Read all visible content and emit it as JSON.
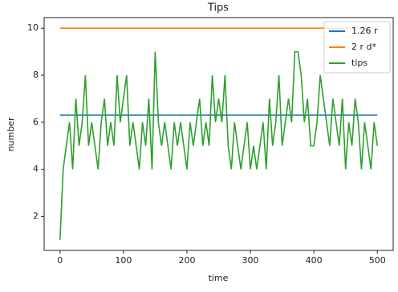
{
  "chart_data": {
    "type": "line",
    "title": "Tips",
    "x_label": "time",
    "y_label": "number",
    "xlim": [
      -25,
      525
    ],
    "ylim": [
      0.55,
      10.45
    ],
    "xticks": [
      0,
      100,
      200,
      300,
      400,
      500
    ],
    "yticks": [
      2,
      4,
      6,
      8,
      10
    ],
    "legend": "upper right",
    "series": [
      {
        "name": "1.26 r",
        "color": "#1f77b4",
        "x": [
          0,
          500
        ],
        "values": [
          6.3,
          6.3
        ]
      },
      {
        "name": "2 r d*",
        "color": "#ff7f0e",
        "x": [
          0,
          500
        ],
        "values": [
          10,
          10
        ]
      },
      {
        "name": "tips",
        "color": "#2ca02c",
        "x": [
          0,
          5,
          10,
          15,
          20,
          25,
          30,
          35,
          40,
          45,
          50,
          55,
          60,
          65,
          70,
          75,
          80,
          85,
          90,
          95,
          100,
          105,
          110,
          115,
          120,
          125,
          130,
          135,
          140,
          145,
          150,
          155,
          160,
          165,
          170,
          175,
          180,
          185,
          190,
          195,
          200,
          205,
          210,
          215,
          220,
          225,
          230,
          235,
          240,
          245,
          250,
          255,
          260,
          265,
          270,
          275,
          280,
          285,
          290,
          295,
          300,
          305,
          310,
          315,
          320,
          325,
          330,
          335,
          340,
          345,
          350,
          355,
          360,
          365,
          370,
          375,
          380,
          385,
          390,
          395,
          400,
          405,
          410,
          415,
          420,
          425,
          430,
          435,
          440,
          445,
          450,
          455,
          460,
          465,
          470,
          475,
          480,
          485,
          490,
          495,
          500
        ],
        "values": [
          1,
          4,
          5,
          6,
          4,
          7,
          5,
          6,
          8,
          5,
          6,
          5,
          4,
          6,
          7,
          5,
          6,
          5,
          8,
          6,
          7,
          8,
          5,
          6,
          5,
          4,
          6,
          5,
          7,
          4,
          9,
          6,
          5,
          6,
          5,
          4,
          6,
          5,
          6,
          5,
          4,
          6,
          5,
          6,
          7,
          5,
          6,
          5,
          8,
          6,
          7,
          6,
          8,
          5,
          4,
          6,
          5,
          4,
          5,
          6,
          4,
          5,
          4,
          5,
          6,
          4,
          7,
          5,
          6,
          8,
          5,
          6,
          7,
          6,
          9,
          9,
          8,
          6,
          7,
          5,
          5,
          6,
          8,
          7,
          6,
          5,
          7,
          6,
          5,
          7,
          4,
          6,
          5,
          7,
          6,
          4,
          6,
          5,
          4,
          6,
          5
        ]
      }
    ]
  }
}
